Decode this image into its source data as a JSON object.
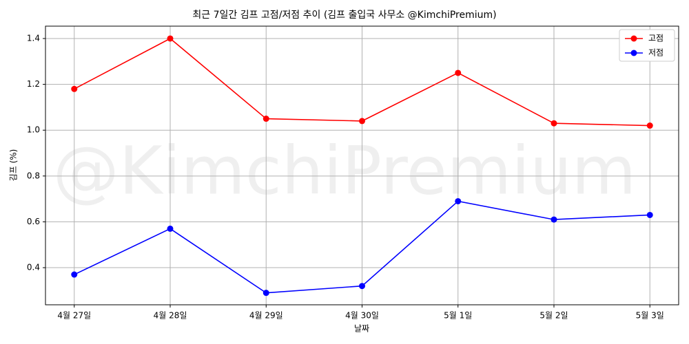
{
  "chart_data": {
    "type": "line",
    "title": "최근 7일간 김프 고점/저점 추이 (김프 출입국 사무소 @KimchiPremium)",
    "watermark": "@KimchiPremium",
    "xlabel": "날짜",
    "ylabel": "김프 (%)",
    "categories": [
      "4월 27일",
      "4월 28일",
      "4월 29일",
      "4월 30일",
      "5월 1일",
      "5월 2일",
      "5월 3일"
    ],
    "series": [
      {
        "name": "고점",
        "color": "#ff0000",
        "values": [
          1.18,
          1.4,
          1.05,
          1.04,
          1.25,
          1.03,
          1.02
        ]
      },
      {
        "name": "저점",
        "color": "#0000ff",
        "values": [
          0.37,
          0.57,
          0.29,
          0.32,
          0.69,
          0.61,
          0.63
        ]
      }
    ],
    "ylim": [
      0.238,
      1.454
    ],
    "yticks": [
      0.4,
      0.6,
      0.8,
      {
        "value": 1.0,
        "label": "1.0"
      },
      1.2,
      1.4
    ],
    "grid": true,
    "legend": "upper-right"
  }
}
